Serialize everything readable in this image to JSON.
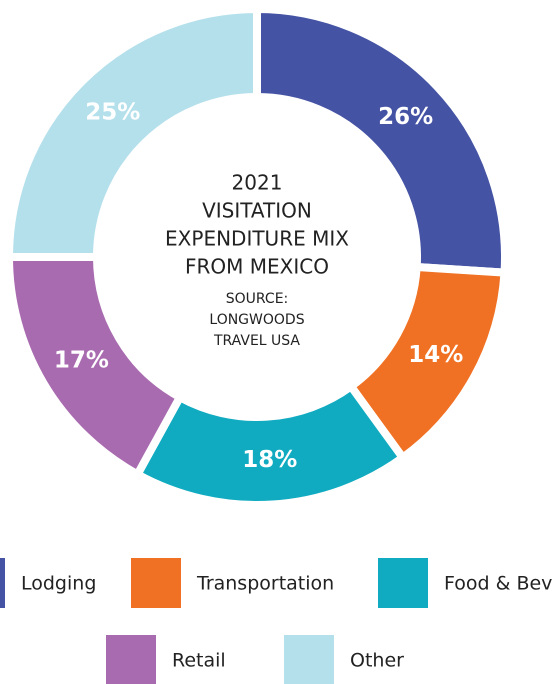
{
  "chart_data": {
    "type": "donut",
    "title_lines": [
      "2021",
      "VISITATION",
      "EXPENDITURE MIX",
      "FROM MEXICO"
    ],
    "source_lines": [
      "SOURCE:",
      "LONGWOODS",
      "TRAVEL USA"
    ],
    "categories": [
      "Lodging",
      "Transportation",
      "Food & Bev",
      "Retail",
      "Other"
    ],
    "values": [
      26,
      14,
      18,
      17,
      25
    ],
    "value_labels": [
      "26%",
      "14%",
      "18%",
      "17%",
      "25%"
    ],
    "colors": [
      "#4553a4",
      "#f07123",
      "#10abc0",
      "#a96bb0",
      "#b4e0ec"
    ]
  }
}
